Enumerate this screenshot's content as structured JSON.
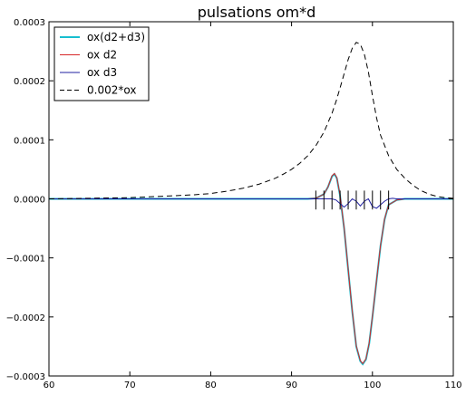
{
  "chart_data": {
    "type": "line",
    "title": "pulsations om*d",
    "xlabel": "",
    "ylabel": "",
    "xlim": [
      60,
      110
    ],
    "ylim": [
      -0.0003,
      0.0003
    ],
    "x_ticks": [
      60,
      70,
      80,
      90,
      100,
      110
    ],
    "x_tick_labels": [
      "60",
      "70",
      "80",
      "90",
      "100",
      "110"
    ],
    "y_ticks": [
      -0.0003,
      -0.0002,
      -0.0001,
      0.0,
      0.0001,
      0.0002,
      0.0003
    ],
    "y_tick_labels": [
      "−0.0003",
      "−0.0002",
      "−0.0001",
      "0.0000",
      "0.0001",
      "0.0002",
      "0.0003"
    ],
    "grid": false,
    "legend_position": "top-left",
    "series": [
      {
        "name": "ox(d2+d3)",
        "color": "#17becf",
        "style": "solid",
        "x": [
          60,
          90,
          92,
          93,
          94,
          94.5,
          95,
          95.3,
          95.6,
          96,
          96.5,
          97,
          97.5,
          98,
          98.5,
          98.8,
          99.2,
          99.6,
          100,
          100.5,
          101,
          101.5,
          102,
          103,
          104,
          106,
          110
        ],
        "y": [
          0,
          0,
          0,
          1e-06,
          8e-06,
          2e-05,
          3.8e-05,
          4.2e-05,
          3.5e-05,
          5e-06,
          -5e-05,
          -0.00012,
          -0.00019,
          -0.00025,
          -0.000275,
          -0.00028,
          -0.000272,
          -0.000245,
          -0.0002,
          -0.00014,
          -8e-05,
          -3.5e-05,
          -1e-05,
          -2e-06,
          0,
          0,
          0
        ]
      },
      {
        "name": "ox d2",
        "color": "#d62728",
        "style": "solid",
        "x": [
          60,
          90,
          92,
          93,
          94,
          94.5,
          95,
          95.3,
          95.6,
          96,
          96.5,
          97,
          97.5,
          98,
          98.5,
          98.8,
          99.2,
          99.6,
          100,
          100.5,
          101,
          101.5,
          102,
          103,
          104,
          106,
          110
        ],
        "y": [
          0,
          0,
          0,
          1e-06,
          8e-06,
          2e-05,
          3.9e-05,
          4.3e-05,
          3.6e-05,
          6e-06,
          -4.9e-05,
          -0.000119,
          -0.000189,
          -0.000249,
          -0.000274,
          -0.000279,
          -0.000271,
          -0.000244,
          -0.000199,
          -0.000139,
          -7.9e-05,
          -3.4e-05,
          -1e-05,
          -2e-06,
          0,
          0,
          0
        ]
      },
      {
        "name": "ox d3",
        "color": "#1f1fa0",
        "style": "solid",
        "x": [
          60,
          94,
          95,
          95.5,
          96,
          96.5,
          97,
          97.5,
          98,
          98.5,
          99,
          99.5,
          100,
          100.5,
          101,
          101.5,
          102,
          102.5,
          103,
          105,
          110
        ],
        "y": [
          0,
          0,
          0,
          -2e-06,
          -8e-06,
          -1.4e-05,
          -8e-06,
          0,
          -4e-06,
          -1.2e-05,
          -4e-06,
          0,
          -1.3e-05,
          -1.6e-05,
          -1e-05,
          -4e-06,
          0,
          1e-06,
          0,
          0,
          0
        ]
      },
      {
        "name": "0.002*ox",
        "color": "#000000",
        "style": "dashed",
        "x": [
          60,
          65,
          70,
          75,
          78,
          80,
          82,
          84,
          86,
          88,
          89,
          90,
          91,
          92,
          93,
          94,
          95,
          95.5,
          96,
          96.5,
          97,
          97.5,
          98,
          98.5,
          99,
          99.5,
          100,
          100.5,
          101,
          102,
          103,
          104,
          105,
          106,
          107,
          108,
          109,
          110
        ],
        "y": [
          0,
          1e-06,
          2e-06,
          5e-06,
          7e-06,
          9e-06,
          1.3e-05,
          1.8e-05,
          2.5e-05,
          3.5e-05,
          4.2e-05,
          5e-05,
          6e-05,
          7.3e-05,
          9e-05,
          0.000113,
          0.000145,
          0.000165,
          0.000188,
          0.000212,
          0.000236,
          0.000255,
          0.000265,
          0.000262,
          0.000245,
          0.000215,
          0.000175,
          0.000138,
          0.000108,
          7.3e-05,
          5e-05,
          3.5e-05,
          2.3e-05,
          1.4e-05,
          8e-06,
          4e-06,
          2e-06,
          1e-06
        ]
      }
    ],
    "markers": {
      "color": "#000000",
      "x": [
        93,
        94,
        95,
        96,
        97,
        98,
        99,
        100,
        101,
        102
      ],
      "y_low": -1.8e-05,
      "y_high": 1.4e-05
    }
  }
}
